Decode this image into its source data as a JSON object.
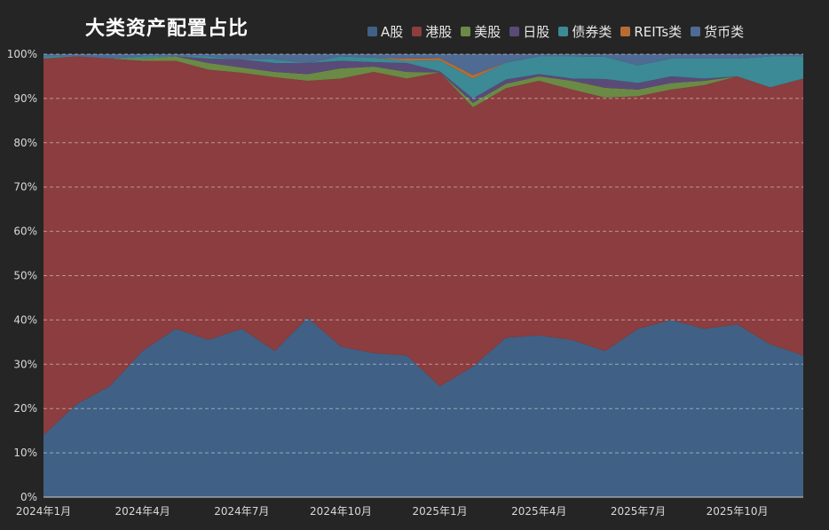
{
  "chart_data": {
    "type": "area",
    "stacked": true,
    "normalized": true,
    "title": "大类资产配置占比",
    "x": [
      "2024-01",
      "2024-02",
      "2024-03",
      "2024-04",
      "2024-05",
      "2024-06",
      "2024-07",
      "2024-08",
      "2024-09",
      "2024-10",
      "2024-11",
      "2024-12",
      "2025-01",
      "2025-02",
      "2025-03",
      "2025-04",
      "2025-05",
      "2025-06",
      "2025-07",
      "2025-08",
      "2025-09",
      "2025-10",
      "2025-11",
      "2025-12"
    ],
    "x_tick_labels": [
      {
        "index": 0,
        "label": "2024年1月"
      },
      {
        "index": 3,
        "label": "2024年4月"
      },
      {
        "index": 6,
        "label": "2024年7月"
      },
      {
        "index": 9,
        "label": "2024年10月"
      },
      {
        "index": 12,
        "label": "2025年1月"
      },
      {
        "index": 15,
        "label": "2025年4月"
      },
      {
        "index": 18,
        "label": "2025年7月"
      },
      {
        "index": 21,
        "label": "2025年10月"
      }
    ],
    "y_ticks": [
      "0%",
      "10%",
      "20%",
      "30%",
      "40%",
      "50%",
      "60%",
      "70%",
      "80%",
      "90%",
      "100%"
    ],
    "ylim": [
      0,
      100
    ],
    "grid": true,
    "legend_position": "top-right",
    "series": [
      {
        "name": "A股",
        "color": "#406185",
        "values": [
          14,
          21,
          25,
          33,
          38,
          35.5,
          38,
          33,
          40.5,
          34,
          32.5,
          32,
          25,
          29.5,
          36,
          36.5,
          35.5,
          33,
          38,
          40,
          38,
          39,
          34.5,
          32
        ]
      },
      {
        "name": "港股",
        "color": "#8b3d3f",
        "values": [
          85,
          78.5,
          74,
          65.5,
          60.5,
          61,
          57.8,
          61.8,
          53.5,
          60.5,
          63.5,
          62.5,
          70.9,
          58.5,
          56.3,
          57.5,
          56.5,
          57.2,
          52.5,
          52,
          55,
          56,
          58,
          62.5
        ]
      },
      {
        "name": "美股",
        "color": "#6b8a45",
        "values": [
          0,
          0,
          0,
          0.5,
          1,
          1.5,
          1.2,
          1.2,
          1.5,
          2.3,
          1.2,
          1.5,
          0,
          1,
          1,
          1,
          2,
          2.2,
          1.5,
          1.5,
          1,
          0,
          0,
          0
        ]
      },
      {
        "name": "日股",
        "color": "#5a4a78",
        "values": [
          0,
          0,
          0,
          0,
          0,
          1,
          1.8,
          2,
          2.5,
          1.7,
          1,
          2,
          0.2,
          1,
          1,
          0.5,
          0.5,
          2,
          1.5,
          1.5,
          0.5,
          0,
          0,
          0
        ]
      },
      {
        "name": "债券类",
        "color": "#3b8a96",
        "values": [
          0.5,
          0,
          0,
          0.5,
          0,
          0.5,
          0,
          0.8,
          0,
          1,
          1,
          0.5,
          2.5,
          4.5,
          3.8,
          4,
          5,
          5,
          4,
          4,
          4.5,
          4,
          7,
          5
        ]
      },
      {
        "name": "REITs类",
        "color": "#b56d35",
        "values": [
          0,
          0,
          0,
          0,
          0,
          0,
          0,
          0,
          0,
          0,
          0,
          0.5,
          0.5,
          0.8,
          0,
          0,
          0,
          0,
          0,
          0,
          0,
          0,
          0,
          0
        ]
      },
      {
        "name": "货币类",
        "color": "#4f6a93",
        "values": [
          0.5,
          0.5,
          1,
          0.5,
          0.5,
          0.5,
          1.2,
          1.2,
          2,
          0.5,
          0.8,
          1,
          0.9,
          4.7,
          1.9,
          0.5,
          0.5,
          0.6,
          2.5,
          1,
          1,
          1,
          0.5,
          0.5
        ]
      }
    ]
  }
}
